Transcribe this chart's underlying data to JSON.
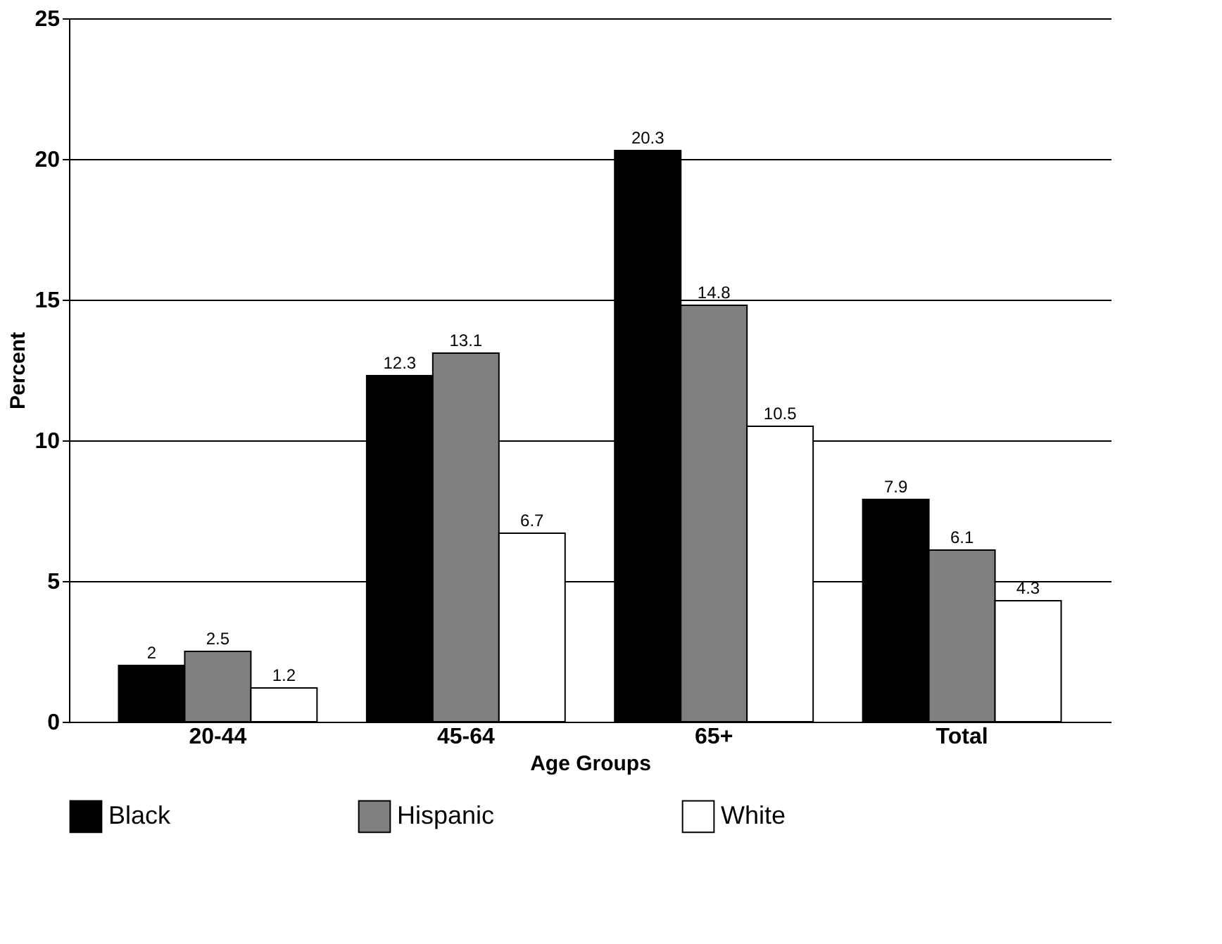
{
  "chart_data": {
    "type": "bar",
    "xlabel": "Age Groups",
    "ylabel": "Percent",
    "categories": [
      "20-44",
      "45-64",
      "65+",
      "Total"
    ],
    "series": [
      {
        "name": "Black",
        "color": "#000000",
        "values": [
          2,
          12.3,
          20.3,
          7.9
        ]
      },
      {
        "name": "Hispanic",
        "color": "#808080",
        "values": [
          2.5,
          13.1,
          14.8,
          6.1
        ]
      },
      {
        "name": "White",
        "color": "#ffffff",
        "values": [
          1.2,
          6.7,
          10.5,
          4.3
        ]
      }
    ],
    "ylim": [
      0,
      25
    ],
    "yticks": [
      0,
      5,
      10,
      15,
      20,
      25
    ],
    "grid": "y",
    "legend": "bottom",
    "data_labels": true
  }
}
